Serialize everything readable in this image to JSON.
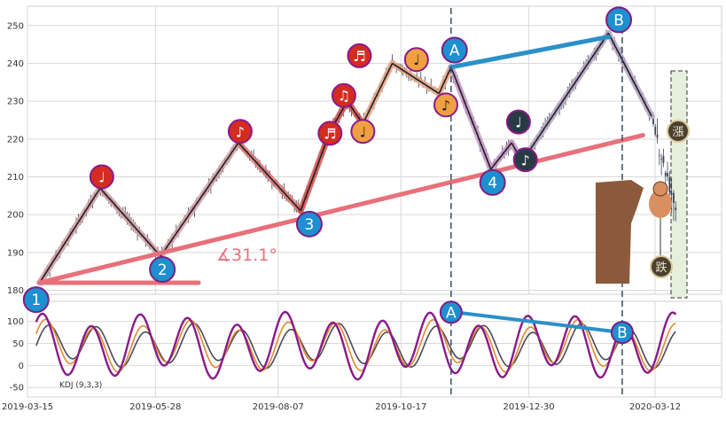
{
  "chart_data": [
    {
      "type": "candlestick",
      "panel": "price",
      "ylim": [
        175,
        253
      ],
      "yticks": [
        180,
        190,
        200,
        210,
        220,
        230,
        240,
        250
      ],
      "grid": true,
      "colors": {
        "candle": "#3a4356",
        "zigzag": "#222222",
        "trend": "#e8707a",
        "channel_ab": "#2a90c8",
        "band": "#e6eedc"
      },
      "zigzag": [
        {
          "date": "2019-03-22",
          "value": 182
        },
        {
          "date": "2019-04-26",
          "value": 207
        },
        {
          "date": "2019-05-31",
          "value": 189
        },
        {
          "date": "2019-07-15",
          "value": 219
        },
        {
          "date": "2019-08-20",
          "value": 201
        },
        {
          "date": "2019-09-06",
          "value": 222
        },
        {
          "date": "2019-09-16",
          "value": 230
        },
        {
          "date": "2019-09-25",
          "value": 224
        },
        {
          "date": "2019-10-12",
          "value": 240
        },
        {
          "date": "2019-11-08",
          "value": 232
        },
        {
          "date": "2019-11-15",
          "value": 239
        },
        {
          "date": "2019-12-08",
          "value": 212
        },
        {
          "date": "2019-12-20",
          "value": 219
        },
        {
          "date": "2019-12-26",
          "value": 214
        },
        {
          "date": "2020-02-14",
          "value": 248
        },
        {
          "date": "2020-03-10",
          "value": 226
        },
        {
          "date": "2020-03-25",
          "value": 200
        }
      ],
      "trendline": [
        {
          "date": "2019-03-22",
          "value": 182
        },
        {
          "date": "2020-03-05",
          "value": 221
        }
      ],
      "angle_label": "∡31.1°",
      "ab_line": [
        {
          "date": "2019-11-15",
          "value": 239
        },
        {
          "date": "2020-02-14",
          "value": 247
        }
      ],
      "vlines": [
        "2019-11-15",
        "2020-02-22"
      ],
      "numbered_markers": [
        {
          "label": "1",
          "date": "2019-03-20",
          "value": 177.5
        },
        {
          "label": "2",
          "date": "2019-06-01",
          "value": 185.5
        },
        {
          "label": "3",
          "date": "2019-08-25",
          "value": 197.5
        },
        {
          "label": "4",
          "date": "2019-12-09",
          "value": 208.5
        },
        {
          "label": "A",
          "date": "2019-11-17",
          "value": 243.5
        },
        {
          "label": "B",
          "date": "2020-02-20",
          "value": 251.5
        }
      ],
      "note_markers": [
        {
          "glyph": "♩",
          "date": "2019-04-27",
          "value": 210,
          "color": "#d42c20"
        },
        {
          "glyph": "♪",
          "date": "2019-07-16",
          "value": 222,
          "color": "#d42c20"
        },
        {
          "glyph": "♬",
          "date": "2019-09-06",
          "value": 221.5,
          "color": "#d42c20"
        },
        {
          "glyph": "♫",
          "date": "2019-09-14",
          "value": 231.5,
          "color": "#d42c20"
        },
        {
          "glyph": "♬",
          "date": "2019-09-23",
          "value": 242,
          "color": "#d42c20"
        },
        {
          "glyph": "♩",
          "date": "2019-09-25",
          "value": 222,
          "color": "#f0a040"
        },
        {
          "glyph": "♩",
          "date": "2019-10-26",
          "value": 241,
          "color": "#f0a040"
        },
        {
          "glyph": "♪",
          "date": "2019-11-12",
          "value": 229,
          "color": "#f0a040"
        },
        {
          "glyph": "♩",
          "date": "2019-12-24",
          "value": 224.5,
          "color": "#283a44"
        },
        {
          "glyph": "♪",
          "date": "2019-12-28",
          "value": 214.5,
          "color": "#283a44"
        }
      ],
      "seal_glyphs": [
        "漲",
        "跌"
      ]
    },
    {
      "type": "line",
      "panel": "indicator",
      "legend_text": "KDJ (9,3,3)",
      "ylim": [
        -60,
        140
      ],
      "yticks": [
        -50,
        0,
        50,
        100
      ],
      "x_tick_labels": [
        "2019-03-15",
        "2019-05-28",
        "2019-08-07",
        "2019-10-17",
        "2019-12-30",
        "2020-03-12"
      ],
      "series_colors": [
        "#4a4a5a",
        "#e08a30",
        "#8a1a8a"
      ],
      "ab_line": [
        {
          "date": "2019-11-17",
          "value": 121
        },
        {
          "date": "2020-02-22",
          "value": 75
        }
      ],
      "markers": [
        {
          "label": "A",
          "date": "2019-11-15",
          "value": 121
        },
        {
          "label": "B",
          "date": "2020-02-22",
          "value": 75
        }
      ]
    }
  ]
}
